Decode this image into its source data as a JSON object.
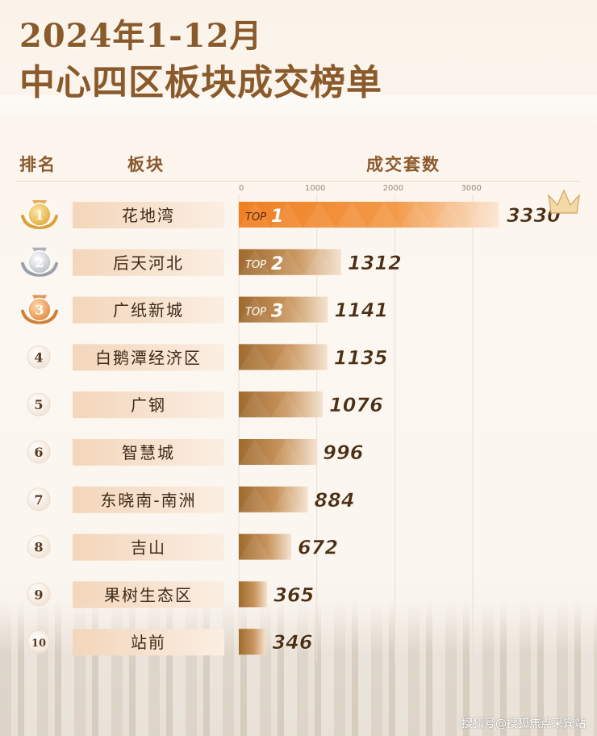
{
  "title_line1": "2024年1-12月",
  "title_line2": "中心四区板块成交榜单",
  "columns": {
    "rank": "排名",
    "block": "板块",
    "volume": "成交套数"
  },
  "watermark": "搜狐号@搜狐焦点采宾站",
  "colors": {
    "title": "#8a5a2b",
    "bar_top1": "#f07f22",
    "bar_dark": "#9e6a2f",
    "bar_light": "#f4e3d0",
    "label_bg": "#f6dfca",
    "value_text": "#4a2f14"
  },
  "chart_data": {
    "type": "bar",
    "orientation": "horizontal",
    "x_ticks": [
      0,
      1000,
      2000,
      3000
    ],
    "xlim": [
      0,
      3330
    ],
    "grid": true,
    "rows": [
      {
        "rank": "1",
        "medal": "gold",
        "badge": "TOP",
        "badge_num": "1",
        "name": "花地湾",
        "value": 3330
      },
      {
        "rank": "2",
        "medal": "silver",
        "badge": "TOP",
        "badge_num": "2",
        "name": "后天河北",
        "value": 1312
      },
      {
        "rank": "3",
        "medal": "bronze",
        "badge": "TOP",
        "badge_num": "3",
        "name": "广纸新城",
        "value": 1141
      },
      {
        "rank": "4",
        "medal": "",
        "badge": "",
        "badge_num": "",
        "name": "白鹅潭经济区",
        "value": 1135
      },
      {
        "rank": "5",
        "medal": "",
        "badge": "",
        "badge_num": "",
        "name": "广钢",
        "value": 1076
      },
      {
        "rank": "6",
        "medal": "",
        "badge": "",
        "badge_num": "",
        "name": "智慧城",
        "value": 996
      },
      {
        "rank": "7",
        "medal": "",
        "badge": "",
        "badge_num": "",
        "name": "东晓南-南洲",
        "value": 884
      },
      {
        "rank": "8",
        "medal": "",
        "badge": "",
        "badge_num": "",
        "name": "吉山",
        "value": 672
      },
      {
        "rank": "9",
        "medal": "",
        "badge": "",
        "badge_num": "",
        "name": "果树生态区",
        "value": 365
      },
      {
        "rank": "10",
        "medal": "",
        "badge": "",
        "badge_num": "",
        "name": "站前",
        "value": 346
      }
    ]
  }
}
